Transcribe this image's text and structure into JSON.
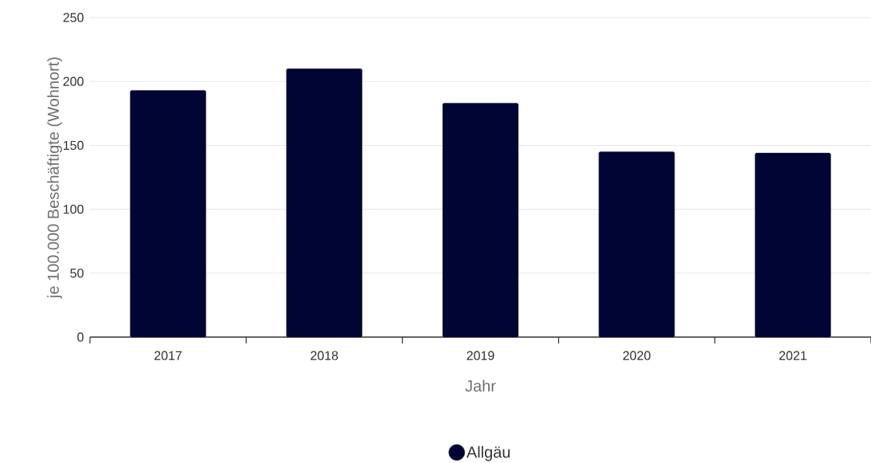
{
  "chart_data": {
    "type": "bar",
    "xlabel": "Jahr",
    "ylabel": "je 100.000 Beschäftigte (Wohnort)",
    "categories": [
      "2017",
      "2018",
      "2019",
      "2020",
      "2021"
    ],
    "series": [
      {
        "name": "Allgäu",
        "color": "#000533",
        "values": [
          193,
          210,
          183,
          145,
          144
        ]
      }
    ],
    "ylim": [
      0,
      250
    ],
    "yticks": [
      0,
      50,
      100,
      150,
      200,
      250
    ],
    "grid": "y",
    "legend": "bottom"
  }
}
